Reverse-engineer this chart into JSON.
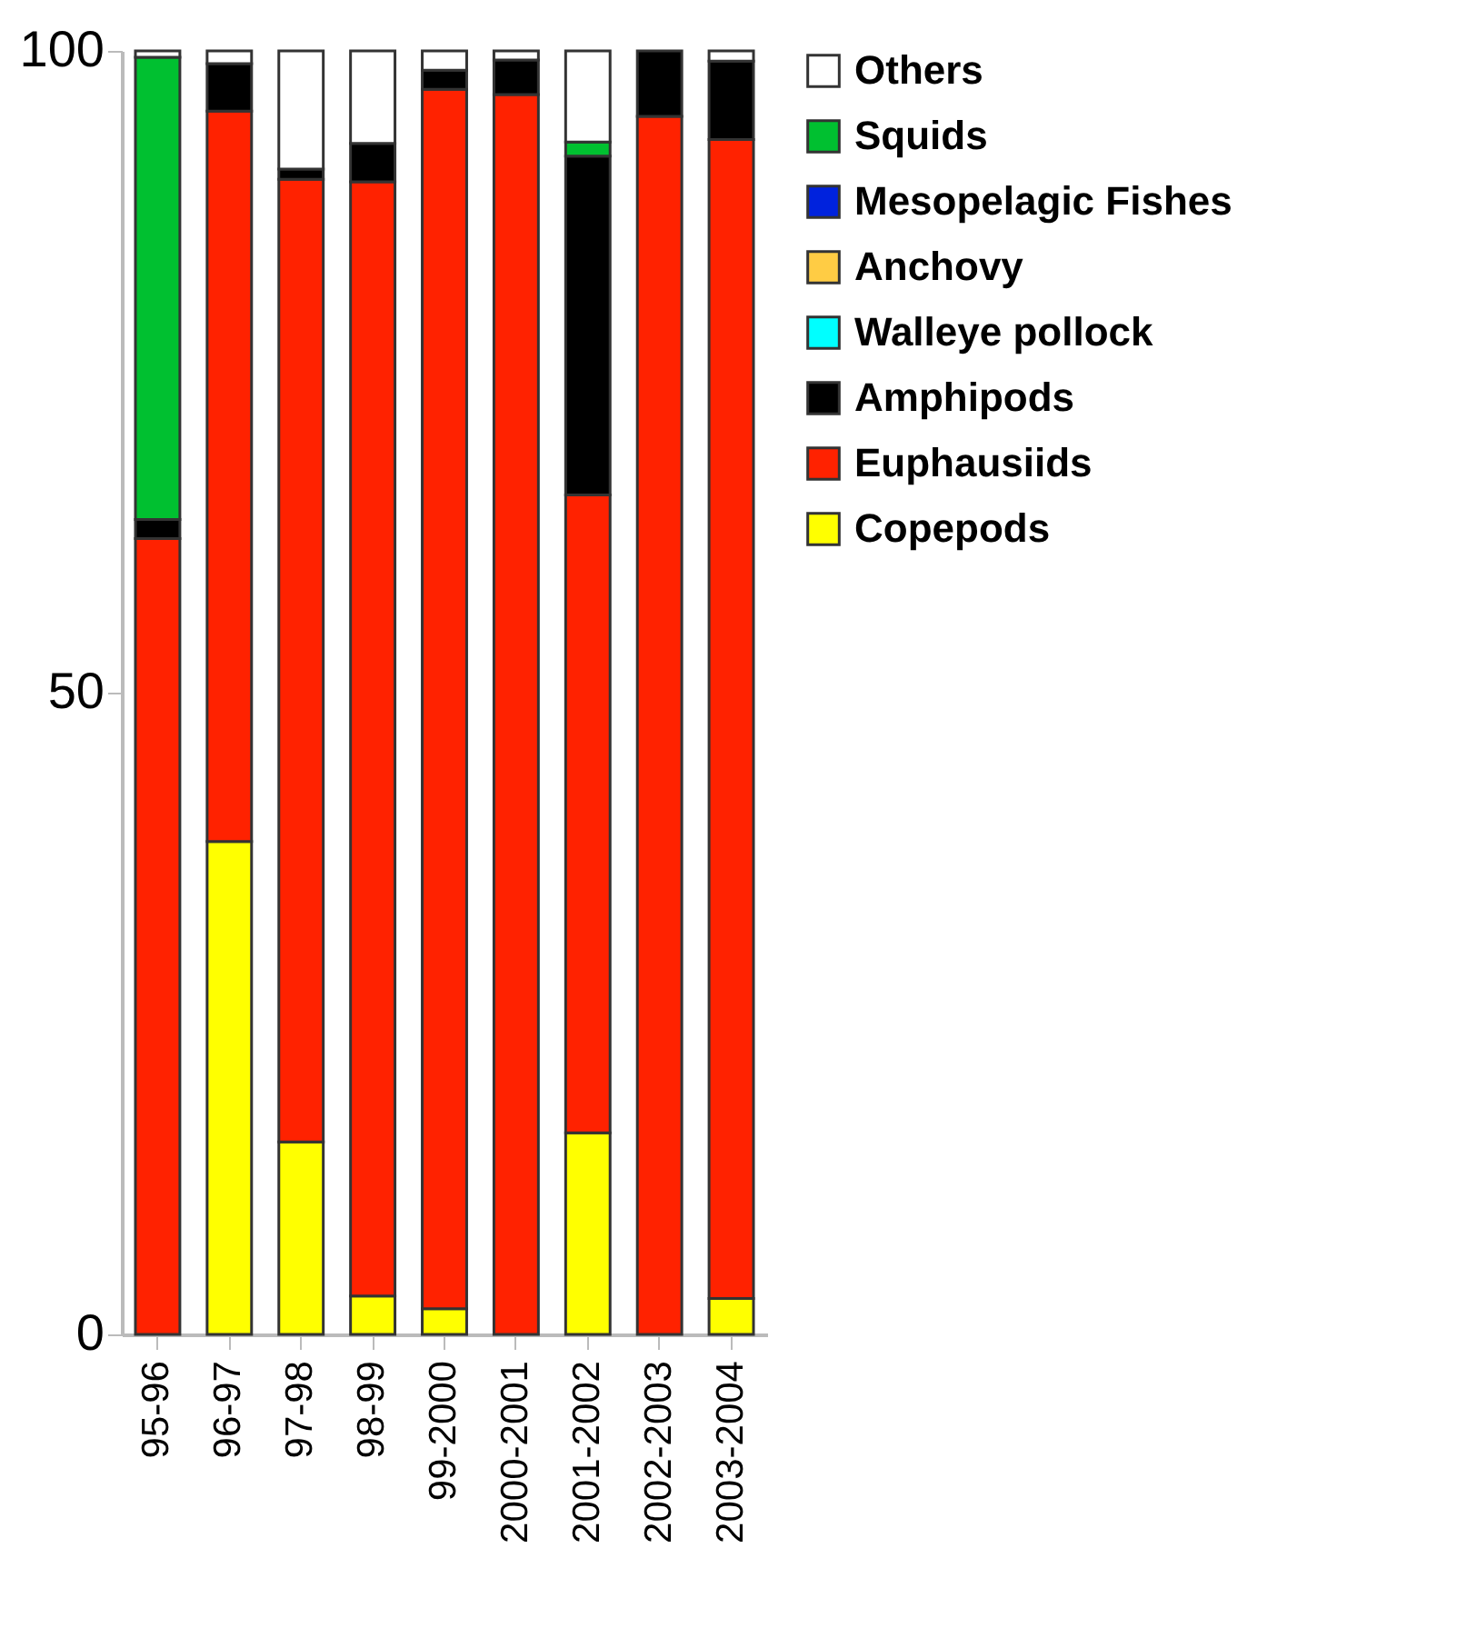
{
  "chart_data": {
    "type": "bar",
    "stacked": true,
    "legend": "right",
    "grid": false,
    "categories": [
      "95-96",
      "96-97",
      "97-98",
      "98-99",
      "99-2000",
      "2000-2001",
      "2001-2002",
      "2002-2003",
      "2003-2004"
    ],
    "ylim": [
      0,
      100
    ],
    "yticks": [
      0,
      50,
      100
    ],
    "series": [
      {
        "name": "Copepods",
        "color": "#ffff00",
        "values": [
          0,
          38.4,
          15,
          3,
          2,
          0,
          15.7,
          0,
          2.8
        ]
      },
      {
        "name": "Euphausiids",
        "color": "#ff2200",
        "values": [
          62,
          56.9,
          75,
          86.8,
          95,
          96.6,
          49.7,
          94.9,
          90.3
        ]
      },
      {
        "name": "Amphipods",
        "color": "#000000",
        "values": [
          1.5,
          3.7,
          0.8,
          3,
          1.5,
          2.7,
          26.4,
          5.1,
          6.1
        ]
      },
      {
        "name": "Walleye pollock",
        "color": "#00ffff",
        "values": [
          0,
          0,
          0,
          0,
          0,
          0,
          0,
          0,
          0
        ]
      },
      {
        "name": "Anchovy",
        "color": "#ffcc44",
        "values": [
          0,
          0,
          0,
          0,
          0,
          0,
          0,
          0,
          0
        ]
      },
      {
        "name": "Mesopelagic Fishes",
        "color": "#0022dd",
        "values": [
          0,
          0,
          0,
          0,
          0,
          0,
          0,
          0,
          0
        ]
      },
      {
        "name": "Squids",
        "color": "#00c030",
        "values": [
          36,
          0,
          0,
          0,
          0,
          0,
          1.1,
          0,
          0
        ]
      },
      {
        "name": "Others",
        "color": "#ffffff",
        "values": [
          0.5,
          1,
          9.2,
          7.2,
          1.5,
          0.7,
          7.1,
          0,
          0.8
        ]
      }
    ]
  }
}
